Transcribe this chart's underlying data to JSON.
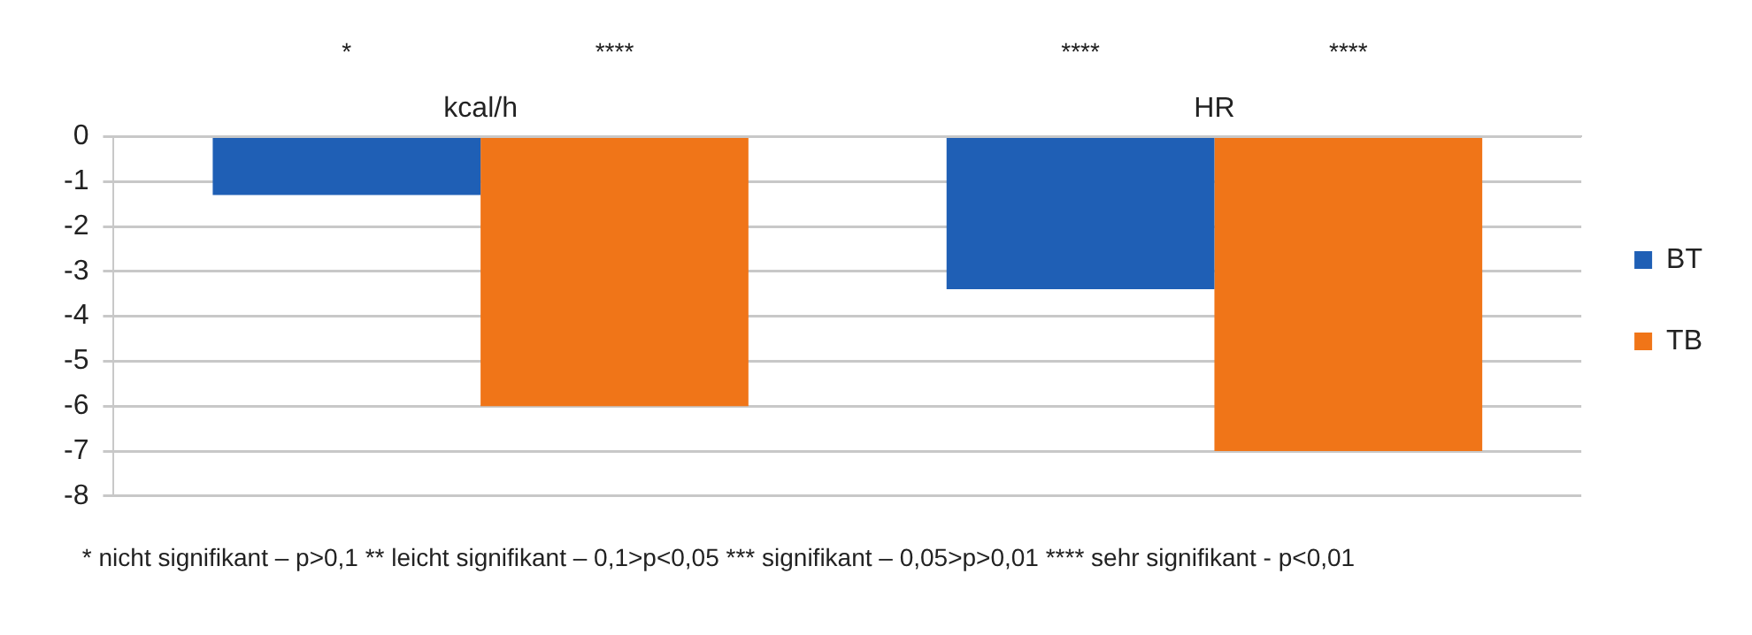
{
  "chart_data": {
    "type": "bar",
    "categories": [
      "kcal/h",
      "HR"
    ],
    "series": [
      {
        "name": "BT",
        "color": "#1f5fb5",
        "values": [
          -1.3,
          -3.4
        ]
      },
      {
        "name": "TB",
        "color": "#f07518",
        "values": [
          -6.0,
          -7.0
        ]
      }
    ],
    "ylim": [
      -8,
      0
    ],
    "yticks": [
      0,
      -1,
      -2,
      -3,
      -4,
      -5,
      -6,
      -7,
      -8
    ],
    "grid": "y",
    "legend": "right",
    "annotations": [
      "*",
      "****",
      "****",
      "****",
      "* nicht signifikant – p>0,1  ** leicht signifikant – 0,1>p<0,05  *** signifikant – 0,05>p>0,01  **** sehr signifikant - p<0,01"
    ]
  }
}
